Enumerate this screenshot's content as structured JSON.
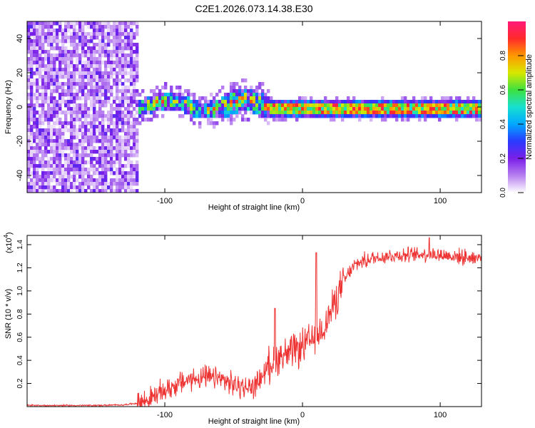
{
  "title": "C2E1.2026.073.14.38.E30",
  "chart_data": [
    {
      "type": "heatmap",
      "title": "C2E1.2026.073.14.38.E30",
      "xlabel": "Height of straight line (km)",
      "ylabel": "Frequency (Hz)",
      "xlim": [
        -200,
        130
      ],
      "ylim": [
        -50,
        50
      ],
      "xticks": [
        -100,
        0,
        100
      ],
      "yticks": [
        -40,
        -20,
        0,
        20,
        40
      ],
      "description_of_regions": [
        {
          "x_range": [
            -200,
            -120
          ],
          "y_range": [
            -50,
            50
          ],
          "level": "low-noise-scatter"
        },
        {
          "x_range": [
            -120,
            -25
          ],
          "y_range": [
            -5,
            8
          ],
          "level": "mid-to-high"
        },
        {
          "x_range": [
            -25,
            130
          ],
          "y_range": [
            -3,
            3
          ],
          "level": "high"
        }
      ],
      "colorbar": {
        "label": "Normalized spectral amplitude",
        "range": [
          0,
          1
        ],
        "ticks": [
          0.0,
          0.2,
          0.4,
          0.6,
          0.8
        ],
        "tick_labels": [
          "0.0",
          "0.2",
          "0.4",
          "0.6",
          "0.8"
        ],
        "colors": [
          "#ffffff",
          "#b77ff0",
          "#7a1fe8",
          "#2a3aff",
          "#00a8ff",
          "#18e0d0",
          "#3ee03e",
          "#d8e800",
          "#ff9800",
          "#ff2a2a",
          "#ff1a7a"
        ]
      }
    },
    {
      "type": "line",
      "xlabel": "Height of straight line (km)",
      "ylabel": "SNR (10 * v/v)",
      "y_multiplier_label": "(x10",
      "y_multiplier_exponent": "4",
      "y_multiplier_suffix": ")",
      "xlim": [
        -200,
        130
      ],
      "ylim": [
        0,
        1.48
      ],
      "xticks": [
        -100,
        0,
        100
      ],
      "yticks": [
        0.2,
        0.4,
        0.6,
        0.8,
        1.0,
        1.2,
        1.4
      ],
      "ytick_labels": [
        "0.2",
        "0.4",
        "0.6",
        "0.8",
        "1.0",
        "1.2",
        "1.4"
      ],
      "series": [
        {
          "name": "SNR",
          "color": "#ee3333",
          "x": [
            -200,
            -150,
            -130,
            -120,
            -112,
            -100,
            -90,
            -80,
            -70,
            -60,
            -50,
            -45,
            -40,
            -35,
            -30,
            -25,
            -20,
            -15,
            -10,
            -5,
            0,
            5,
            10,
            15,
            20,
            25,
            30,
            35,
            40,
            50,
            60,
            70,
            80,
            90,
            100,
            110,
            120,
            130
          ],
          "y": [
            0.01,
            0.01,
            0.015,
            0.03,
            0.06,
            0.14,
            0.2,
            0.24,
            0.25,
            0.24,
            0.19,
            0.17,
            0.16,
            0.18,
            0.25,
            0.35,
            0.42,
            0.45,
            0.45,
            0.48,
            0.52,
            0.56,
            0.6,
            0.68,
            0.8,
            0.95,
            1.08,
            1.18,
            1.24,
            1.28,
            1.3,
            1.31,
            1.31,
            1.32,
            1.31,
            1.3,
            1.29,
            1.29
          ],
          "annotations": [
            {
              "x": 10,
              "y": 1.33,
              "note": "spike"
            },
            {
              "x": -20,
              "y": 0.85,
              "note": "spike"
            },
            {
              "x": 92,
              "y": 1.46,
              "note": "peak"
            }
          ]
        }
      ]
    }
  ]
}
